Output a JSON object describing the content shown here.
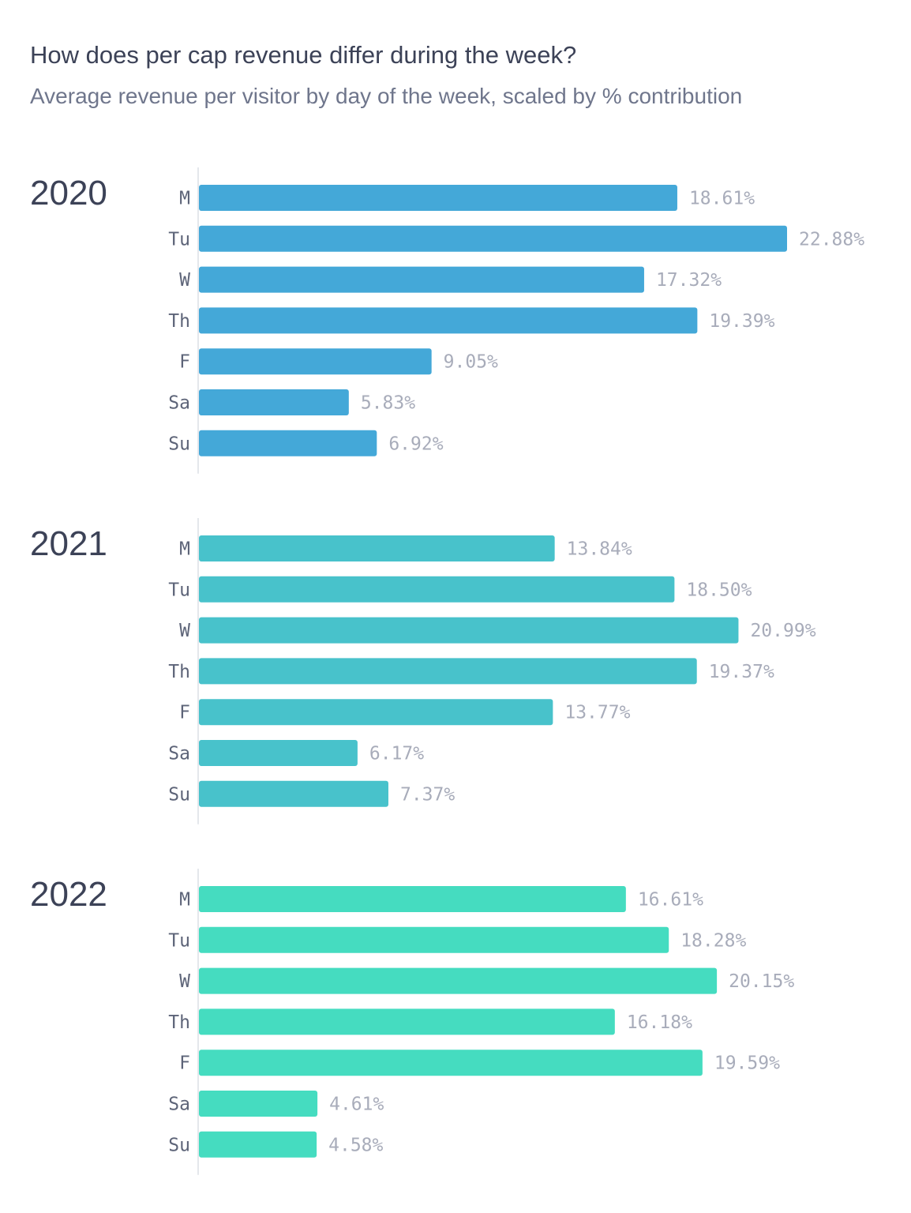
{
  "title": "How does per cap revenue differ during the week?",
  "subtitle": "Average revenue per visitor by day of the week, scaled by % contribution",
  "chart_data": {
    "type": "bar",
    "orientation": "horizontal",
    "title": "How does per cap revenue differ during the week?",
    "subtitle": "Average revenue per visitor by day of the week, scaled by % contribution",
    "categories": [
      "M",
      "Tu",
      "W",
      "Th",
      "F",
      "Sa",
      "Su"
    ],
    "series": [
      {
        "name": "2020",
        "color": "#44a8d8",
        "values": [
          18.61,
          22.88,
          17.32,
          19.39,
          9.05,
          5.83,
          6.92
        ],
        "labels": [
          "18.61%",
          "22.88%",
          "17.32%",
          "19.39%",
          "9.05%",
          "5.83%",
          "6.92%"
        ]
      },
      {
        "name": "2021",
        "color": "#48c2cb",
        "values": [
          13.84,
          18.5,
          20.99,
          19.37,
          13.77,
          6.17,
          7.37
        ],
        "labels": [
          "13.84%",
          "18.50%",
          "20.99%",
          "19.37%",
          "13.77%",
          "6.17%",
          "7.37%"
        ]
      },
      {
        "name": "2022",
        "color": "#45dcc0",
        "values": [
          16.61,
          18.28,
          20.15,
          16.18,
          19.59,
          4.61,
          4.58
        ],
        "labels": [
          "16.61%",
          "18.28%",
          "20.15%",
          "16.18%",
          "19.59%",
          "4.61%",
          "4.58%"
        ]
      }
    ],
    "xlim": [
      0,
      22.88
    ],
    "grid": false,
    "legend": "none"
  }
}
